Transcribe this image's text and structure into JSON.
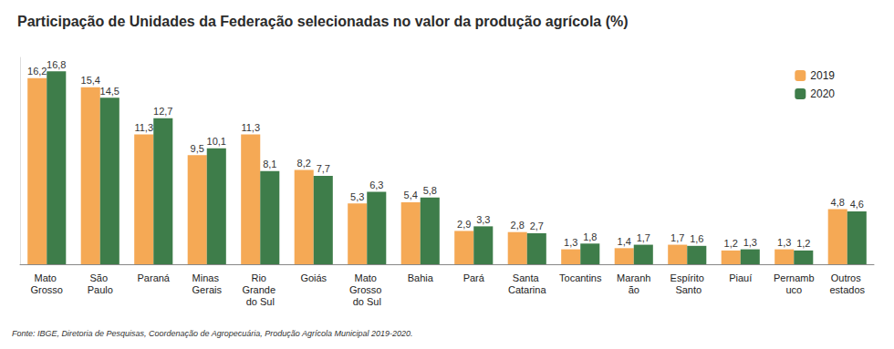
{
  "chart_data": {
    "type": "bar",
    "title": "Participação de Unidades da Federação selecionadas no valor da produção agrícola (%)",
    "source": "Fonte: IBGE, Diretoria de Pesquisas, Coordenação de Agropecuária, Produção Agrícola Municipal 2019-2020.",
    "categories": [
      "Mato Grosso",
      "São Paulo",
      "Paraná",
      "Minas Gerais",
      "Rio Grande do Sul",
      "Goiás",
      "Mato Grosso do Sul",
      "Bahia",
      "Pará",
      "Santa Catarina",
      "Tocantins",
      "Maranhão",
      "Espírito Santo",
      "Piauí",
      "Pernambuco",
      "Outros estados"
    ],
    "series": [
      {
        "name": "2019",
        "color": "#f5a955",
        "values": [
          16.2,
          15.4,
          11.3,
          9.5,
          11.3,
          8.2,
          5.3,
          5.4,
          2.9,
          2.8,
          1.3,
          1.4,
          1.7,
          1.2,
          1.3,
          4.8
        ],
        "value_labels": [
          "16,2",
          "15,4",
          "11,3",
          "9,5",
          "11,3",
          "8,2",
          "5,3",
          "5,4",
          "2,9",
          "2,8",
          "1,3",
          "1,4",
          "1,7",
          "1,2",
          "1,3",
          "4,8"
        ]
      },
      {
        "name": "2020",
        "color": "#3e7d4a",
        "values": [
          16.8,
          14.5,
          12.7,
          10.1,
          8.1,
          7.7,
          6.3,
          5.8,
          3.3,
          2.7,
          1.8,
          1.7,
          1.6,
          1.3,
          1.2,
          4.6
        ],
        "value_labels": [
          "16,8",
          "14,5",
          "12,7",
          "10,1",
          "8,1",
          "7,7",
          "6,3",
          "5,8",
          "3,3",
          "2,7",
          "1,8",
          "1,7",
          "1,6",
          "1,3",
          "1,2",
          "4,6"
        ]
      }
    ],
    "ylim": [
      0,
      18
    ],
    "grid": false,
    "legend": "top-right",
    "data_labels": true,
    "tick_labels": "x"
  }
}
